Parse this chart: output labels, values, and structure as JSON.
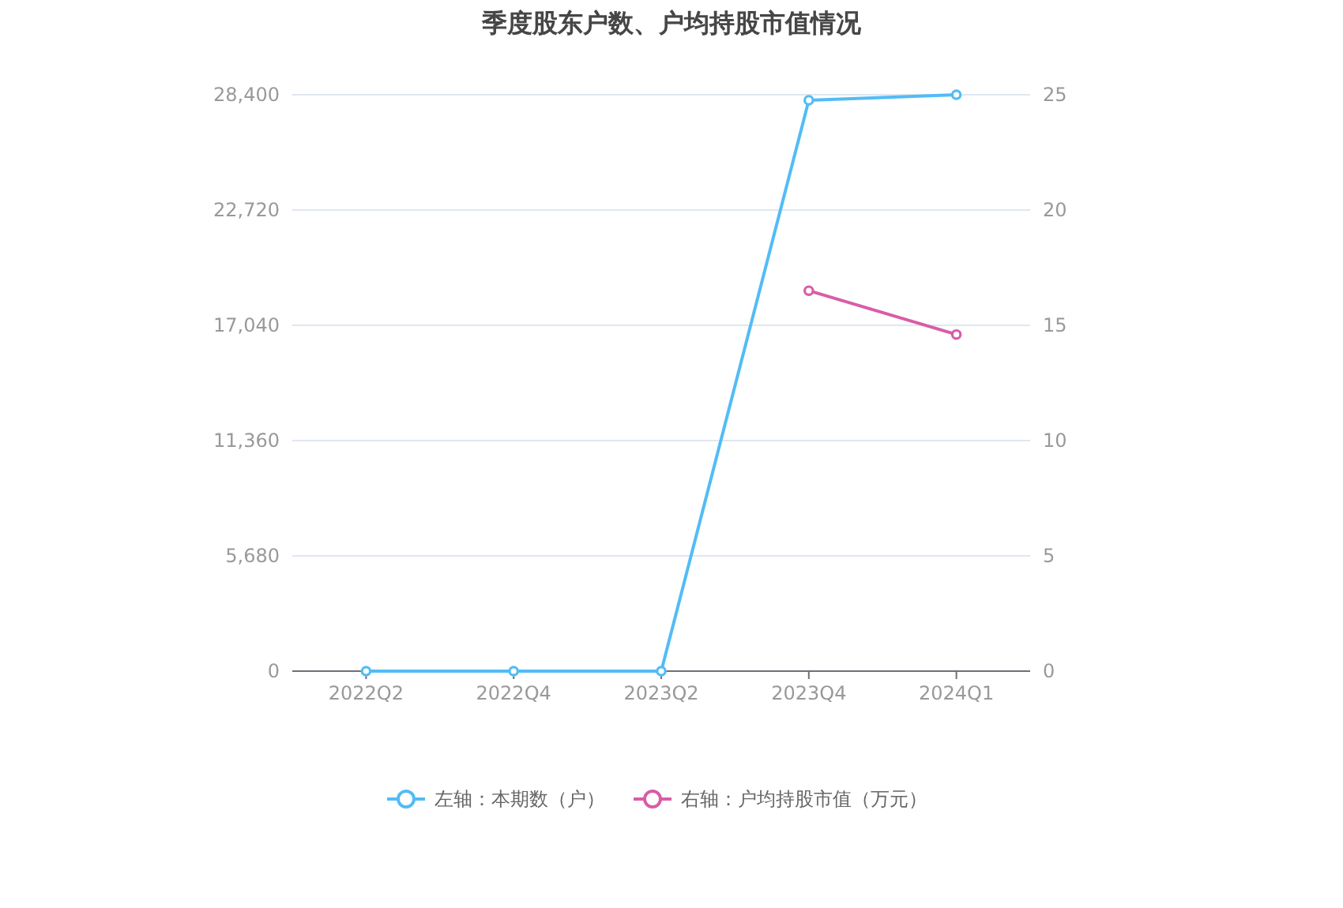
{
  "chart_data": {
    "type": "line",
    "title": "季度股东户数、户均持股市值情况",
    "categories": [
      "2022Q2",
      "2022Q4",
      "2023Q2",
      "2023Q4",
      "2024Q1"
    ],
    "series": [
      {
        "name": "左轴：本期数（户）",
        "color": "#52bcf5",
        "values": [
          0,
          0,
          0,
          28130,
          28400
        ]
      },
      {
        "name": "右轴：户均持股市值（万元）",
        "color": "#d85da8",
        "axis": "y2",
        "values": [
          null,
          null,
          null,
          16.5,
          14.6
        ]
      }
    ],
    "ylim": [
      0,
      28400
    ],
    "yticks": [
      0,
      {
        "value": 5680,
        "label": "5,680"
      },
      {
        "value": 11360,
        "label": "11,360"
      },
      {
        "value": 17040,
        "label": "17,040"
      },
      {
        "value": 22720,
        "label": "22,720"
      },
      {
        "value": 28400,
        "label": "28,400"
      }
    ],
    "y2lim": [
      0,
      25
    ],
    "y2ticks": [
      0,
      5,
      10,
      15,
      20,
      25
    ],
    "grid": "y",
    "legend": "bottom",
    "marker": "circle"
  }
}
